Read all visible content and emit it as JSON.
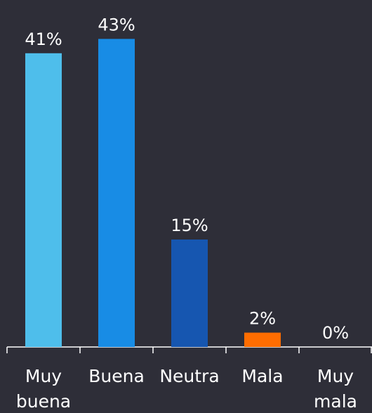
{
  "chart_data": {
    "type": "bar",
    "categories": [
      "Muy buena",
      "Buena",
      "Neutra",
      "Mala",
      "Muy mala"
    ],
    "values": [
      41,
      43,
      15,
      2,
      0
    ],
    "value_labels": [
      "41%",
      "43%",
      "15%",
      "2%",
      "0%"
    ],
    "colors": [
      "#4ebeeb",
      "#188ce5",
      "#1656b0",
      "#ff6d00",
      "#ff4136"
    ]
  }
}
